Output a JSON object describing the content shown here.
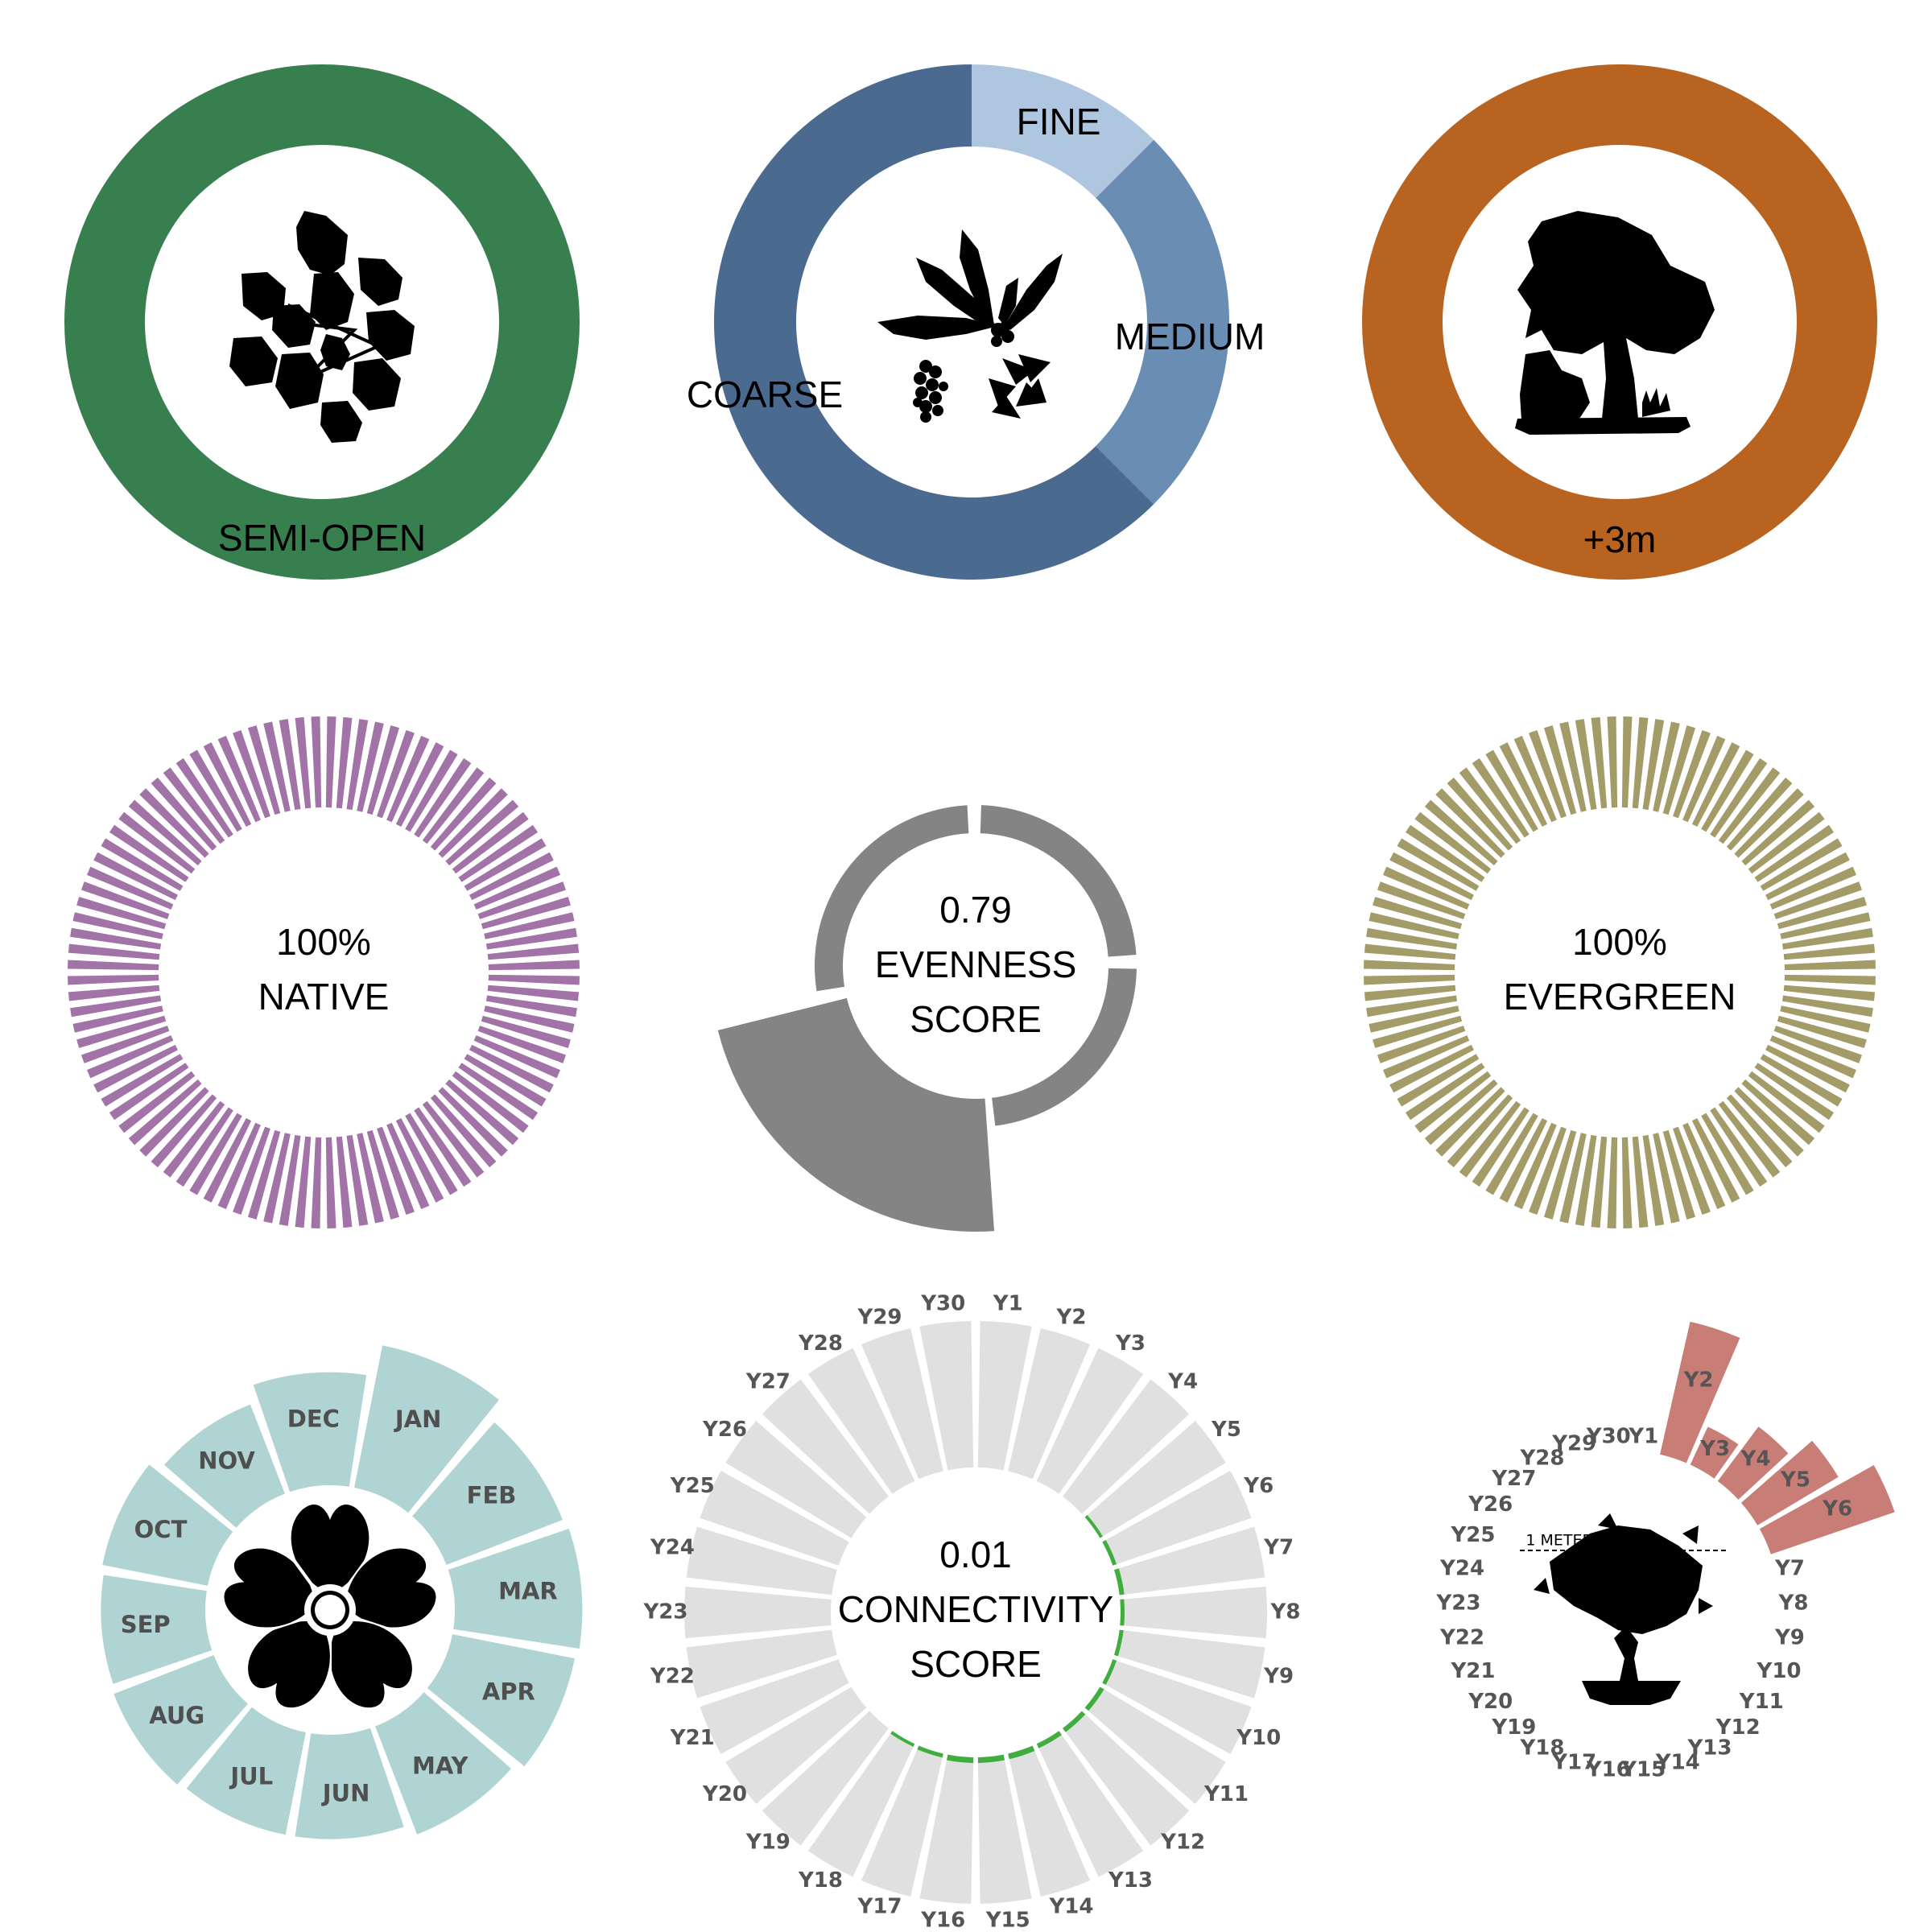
{
  "chart_data": [
    {
      "type": "pie",
      "panel": "canopy",
      "categories": [
        "SEMI-OPEN"
      ],
      "values": [
        1
      ],
      "colors": [
        "#387f50"
      ],
      "icon": "leaf-cluster-icon"
    },
    {
      "type": "pie",
      "panel": "texture",
      "categories": [
        "FINE",
        "MEDIUM",
        "COARSE"
      ],
      "values": [
        0.125,
        0.25,
        0.625
      ],
      "colors": [
        "#afc6e0",
        "#6a8db4",
        "#4b6a8f"
      ],
      "icon": "foliage-texture-icon"
    },
    {
      "type": "pie",
      "panel": "height",
      "categories": [
        "+3m"
      ],
      "values": [
        1
      ],
      "colors": [
        "#b8631f"
      ],
      "icon": "tree-icon"
    },
    {
      "type": "bar",
      "panel": "native",
      "value": 100,
      "label_value": "100%",
      "label": "NATIVE",
      "color": "#a173a7"
    },
    {
      "type": "bar",
      "panel": "evenness",
      "value": 0.79,
      "label_value": "0.79",
      "label_lines": [
        "EVENNESS",
        "SCORE"
      ],
      "sectors": [
        {
          "start_deg": 2,
          "end_deg": 86,
          "radius": "small"
        },
        {
          "start_deg": 91,
          "end_deg": 173,
          "radius": "small"
        },
        {
          "start_deg": 176,
          "end_deg": 256,
          "radius": "large"
        },
        {
          "start_deg": 261,
          "end_deg": 357,
          "radius": "small"
        }
      ],
      "color": "#858485"
    },
    {
      "type": "bar",
      "panel": "evergreen",
      "value": 100,
      "label_value": "100%",
      "label": "EVERGREEN",
      "color": "#a39c69"
    },
    {
      "type": "bar",
      "panel": "flowering",
      "categories": [
        "JAN",
        "FEB",
        "MAR",
        "APR",
        "MAY",
        "JUN",
        "JUL",
        "AUG",
        "SEP",
        "OCT",
        "NOV",
        "DEC"
      ],
      "values": [
        1.0,
        0.86,
        0.88,
        0.86,
        0.8,
        0.72,
        0.72,
        0.74,
        0.72,
        0.74,
        0.66,
        0.78
      ],
      "color": "#b0d3d4",
      "icon": "flower-icon"
    },
    {
      "type": "bar",
      "panel": "connectivity",
      "categories": [
        "Y1",
        "Y2",
        "Y3",
        "Y4",
        "Y5",
        "Y6",
        "Y7",
        "Y8",
        "Y9",
        "Y10",
        "Y11",
        "Y12",
        "Y13",
        "Y14",
        "Y15",
        "Y16",
        "Y17",
        "Y18",
        "Y19",
        "Y20",
        "Y21",
        "Y22",
        "Y23",
        "Y24",
        "Y25",
        "Y26",
        "Y27",
        "Y28",
        "Y29",
        "Y30"
      ],
      "values": [
        0,
        0,
        0,
        0,
        0.005,
        0.01,
        0.015,
        0.01,
        0.01,
        0.01,
        0.015,
        0.015,
        0.015,
        0.02,
        0.02,
        0.02,
        0.01,
        0.005,
        0,
        0,
        0,
        0,
        0,
        0,
        0,
        0,
        0,
        0,
        0,
        0
      ],
      "label_value": "0.01",
      "label_lines": [
        "CONNECTIVITY",
        "SCORE"
      ],
      "bar_color": "#e0e0e0",
      "value_color": "#3fae3f"
    },
    {
      "type": "bar",
      "panel": "growth",
      "categories": [
        "Y1",
        "Y2",
        "Y3",
        "Y4",
        "Y5",
        "Y6",
        "Y7",
        "Y8",
        "Y9",
        "Y10",
        "Y11",
        "Y12",
        "Y13",
        "Y14",
        "Y15",
        "Y16",
        "Y17",
        "Y18",
        "Y19",
        "Y20",
        "Y21",
        "Y22",
        "Y23",
        "Y24",
        "Y25",
        "Y26",
        "Y27",
        "Y28",
        "Y29",
        "Y30"
      ],
      "values": [
        0,
        2.6,
        0.8,
        1.3,
        1.8,
        2.5,
        0,
        0,
        0,
        0,
        0,
        0,
        0,
        0,
        0,
        0,
        0,
        0,
        0,
        0,
        0,
        0,
        0,
        0,
        0,
        0,
        0,
        0,
        0,
        0
      ],
      "reference_label": "1 METER",
      "color": "#c97d77",
      "icon": "bonsai-icon"
    }
  ]
}
